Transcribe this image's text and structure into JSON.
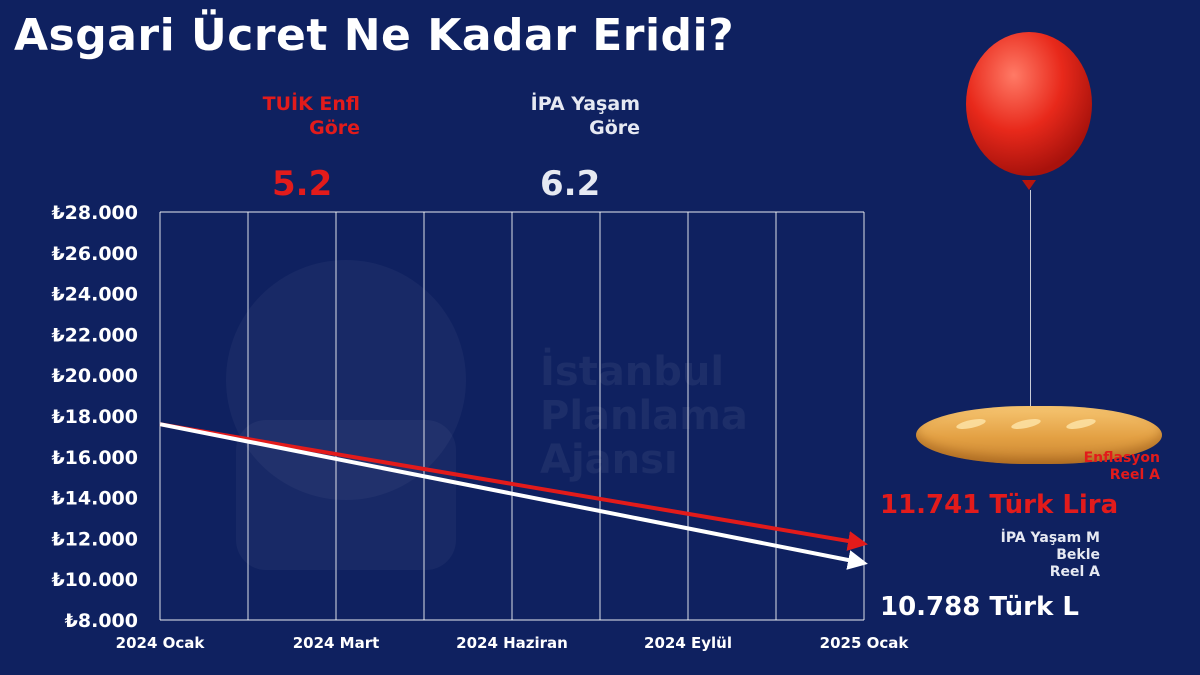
{
  "title": "Asgari Ücret Ne Kadar Eridi?",
  "header": {
    "tuik_line1": "TUİK Enfl",
    "tuik_line2": "Göre",
    "tuik_big": "5.2",
    "ipa_line1": "İPA Yaşam",
    "ipa_line2": "Göre",
    "ipa_big": "6.2"
  },
  "watermark": {
    "line1": "İstanbul",
    "line2": "Planlama",
    "line3": "Ajansı"
  },
  "right_labels": {
    "tuik_label_line1": "Enflasyon",
    "tuik_label_line2": "Reel A",
    "tuik_value": "11.741 Türk Lira",
    "ipa_label_line1": "İPA Yaşam M",
    "ipa_label_line2": "Bekle",
    "ipa_label_line3": "Reel A",
    "ipa_value": "10.788 Türk L"
  },
  "colors": {
    "background": "#0f2160",
    "tuik": "#e21b1b",
    "ipa": "#ffffff",
    "grid": "#ffffff"
  },
  "chart_data": {
    "type": "line",
    "title": "Asgari Ücret Ne Kadar Eridi?",
    "xlabel": "",
    "ylabel": "",
    "x_categories": [
      "2024 Ocak",
      "2024 Mart",
      "2024 Haziran",
      "2024 Eylül",
      "2025 Ocak"
    ],
    "ylim": [
      8000,
      28000
    ],
    "y_ticks": [
      8000,
      10000,
      12000,
      14000,
      16000,
      18000,
      20000,
      22000,
      24000,
      26000,
      28000
    ],
    "y_tick_labels": [
      "₺8.000",
      "₺10.000",
      "₺12.000",
      "₺14.000",
      "₺16.000",
      "₺18.000",
      "₺20.000",
      "₺22.000",
      "₺24.000",
      "₺26.000",
      "₺28.000"
    ],
    "grid": true,
    "series": [
      {
        "values": [
          17600,
          11741
        ],
        "color": "#e21b1b"
      },
      {
        "values": [
          17600,
          10788
        ],
        "color": "#ffffff"
      }
    ]
  }
}
